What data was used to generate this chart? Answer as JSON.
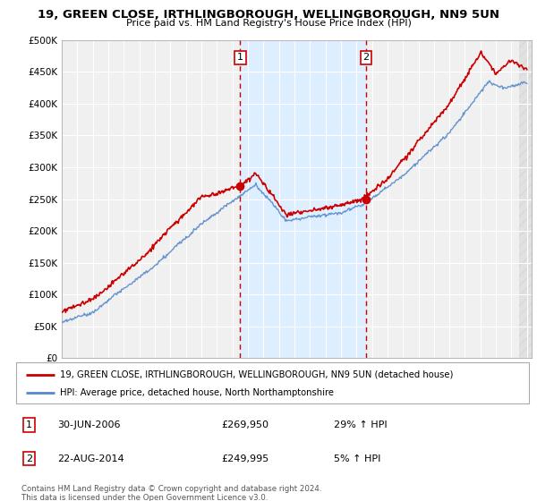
{
  "title1": "19, GREEN CLOSE, IRTHLINGBOROUGH, WELLINGBOROUGH, NN9 5UN",
  "title2": "Price paid vs. HM Land Registry's House Price Index (HPI)",
  "legend_line1": "19, GREEN CLOSE, IRTHLINGBOROUGH, WELLINGBOROUGH, NN9 5UN (detached house)",
  "legend_line2": "HPI: Average price, detached house, North Northamptonshire",
  "annotation1_label": "1",
  "annotation1_date": "30-JUN-2006",
  "annotation1_price": "£269,950",
  "annotation1_hpi": "29% ↑ HPI",
  "annotation2_label": "2",
  "annotation2_date": "22-AUG-2014",
  "annotation2_price": "£249,995",
  "annotation2_hpi": "5% ↑ HPI",
  "footer": "Contains HM Land Registry data © Crown copyright and database right 2024.\nThis data is licensed under the Open Government Licence v3.0.",
  "hpi_color": "#5588cc",
  "price_color": "#cc0000",
  "vline_color": "#cc0000",
  "annotation_box_color": "#cc0000",
  "background_plot": "#f0f0f0",
  "shade_between_color": "#ddeeff",
  "ylim": [
    0,
    500000
  ],
  "yticks": [
    0,
    50000,
    100000,
    150000,
    200000,
    250000,
    300000,
    350000,
    400000,
    450000,
    500000
  ],
  "sale1_x": 2006.5,
  "sale1_y": 269950,
  "sale2_x": 2014.62,
  "sale2_y": 249995,
  "xmin": 1995,
  "xmax": 2025
}
